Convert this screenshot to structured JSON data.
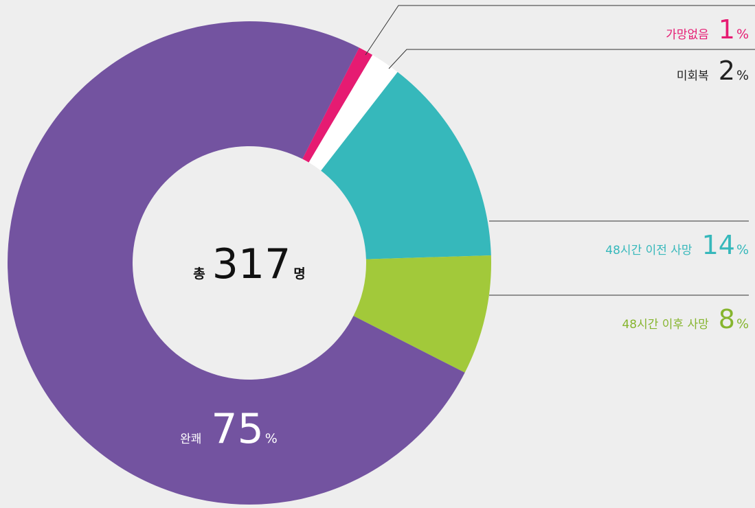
{
  "chart_data": {
    "type": "pie",
    "categories": [
      "가망없음",
      "미회복",
      "48시간 이전 사망",
      "48시간 이후 사망",
      "완쾌"
    ],
    "values": [
      1,
      2,
      14,
      8,
      75
    ],
    "colors": [
      "#e61b72",
      "#ffffff",
      "#36b8bb",
      "#a2c93a",
      "#7353a0"
    ],
    "label_colors": [
      "#e61b72",
      "#222222",
      "#36b8bb",
      "#86b52e",
      "#ffffff"
    ],
    "unit": "%",
    "center_label": {
      "prefix": "총",
      "value": 317,
      "suffix": "명"
    }
  }
}
